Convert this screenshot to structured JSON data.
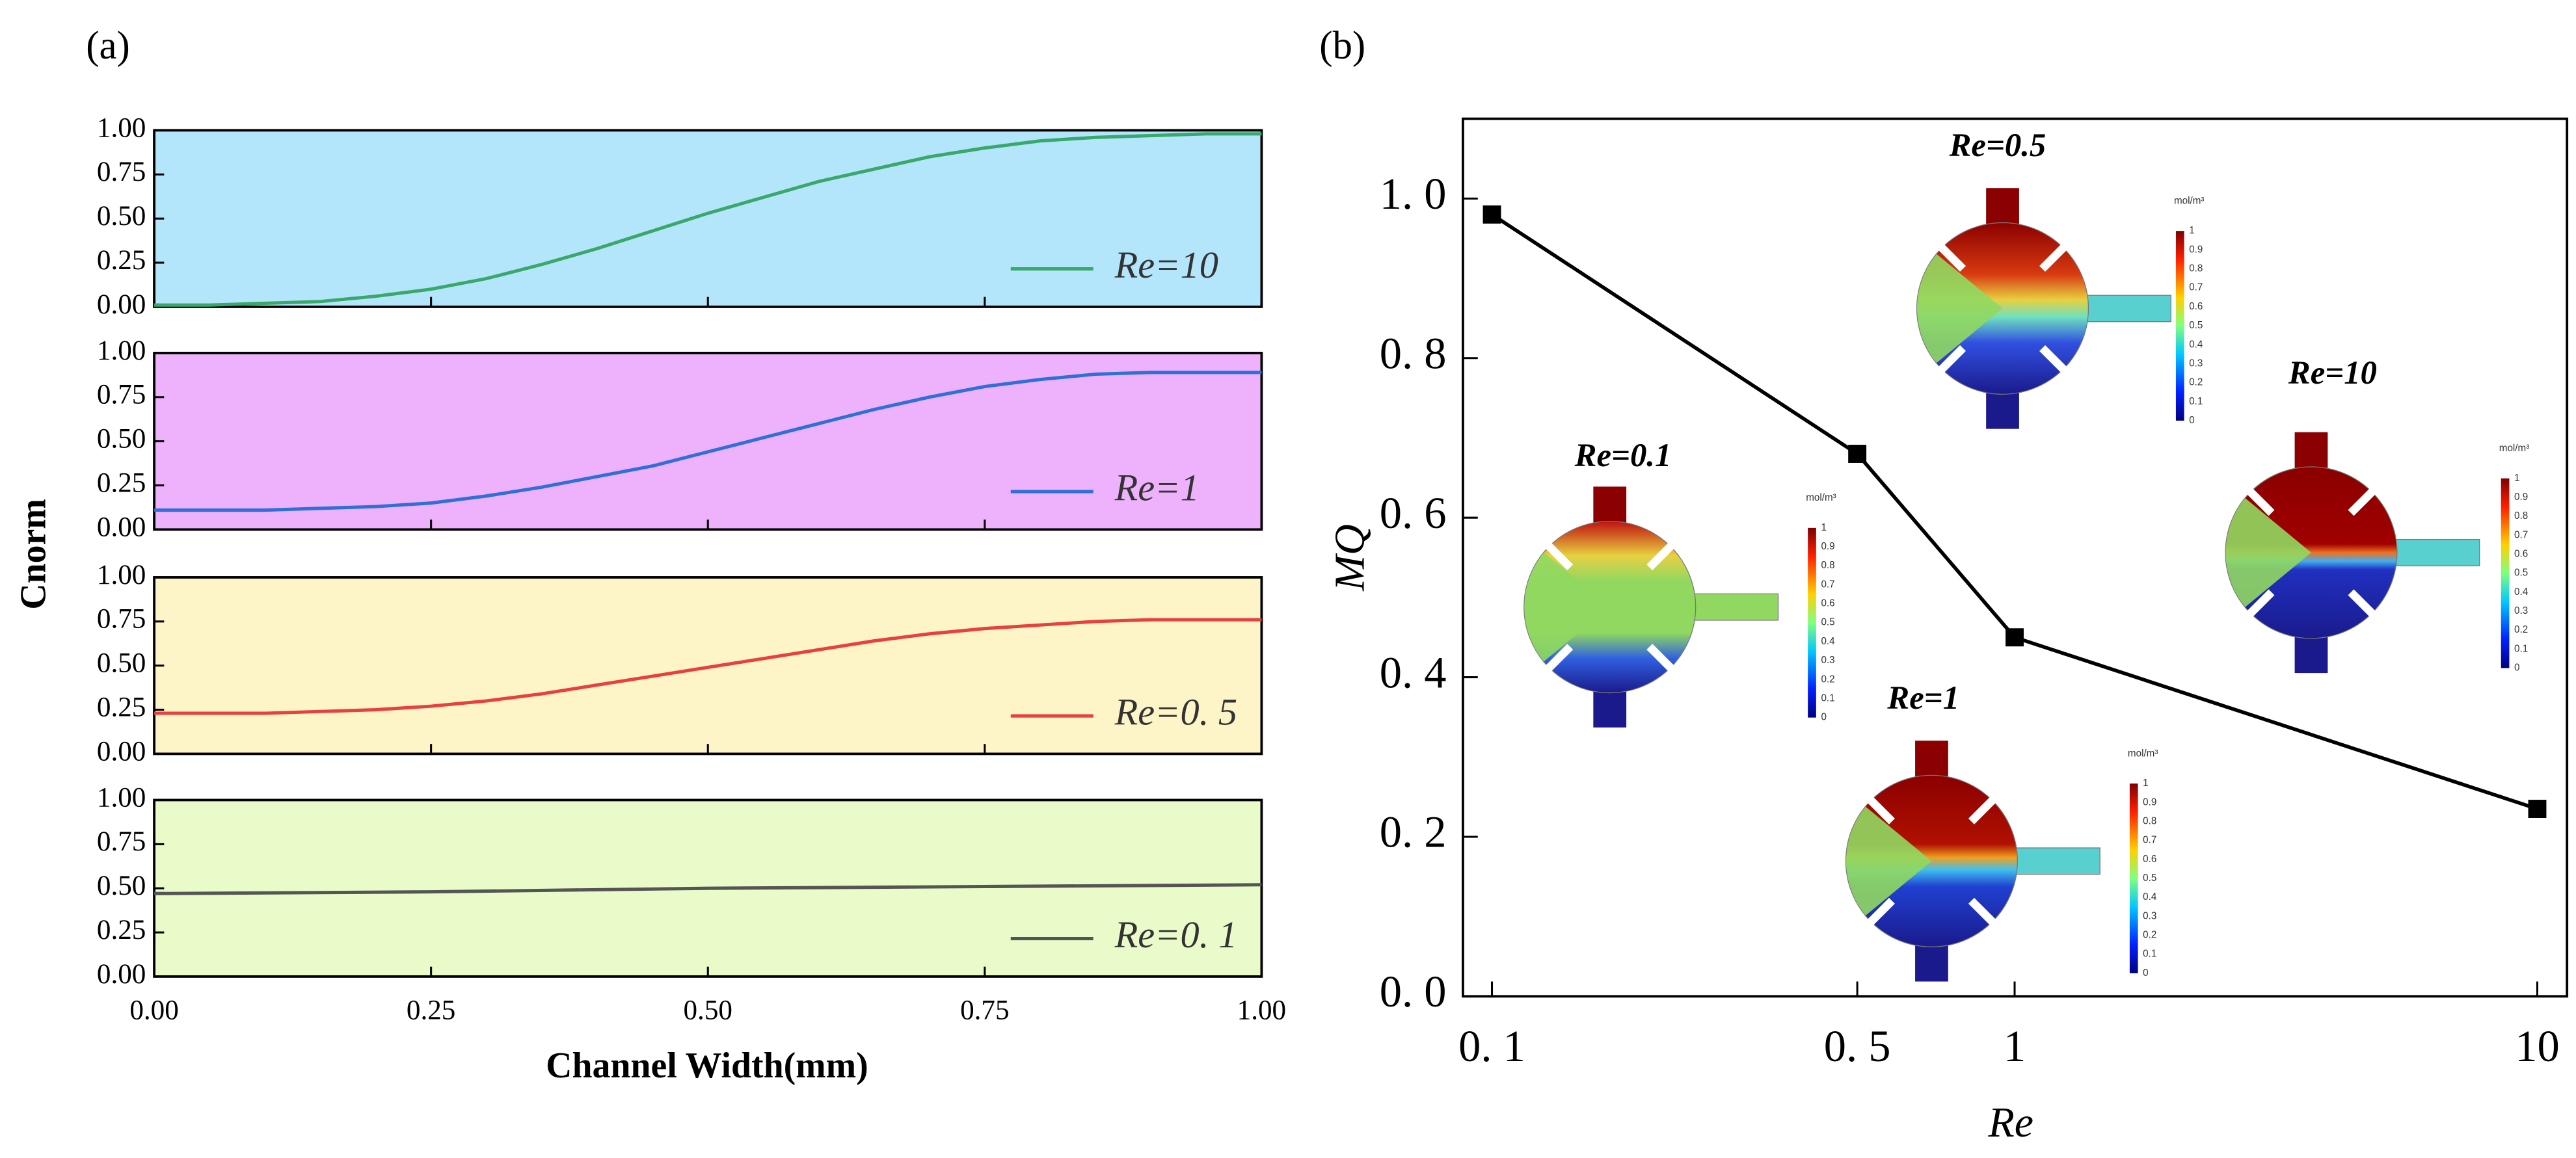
{
  "panels": [
    {
      "label": "(a)",
      "ylabel": "Cnorm",
      "xlabel": "Channel Width(mm)"
    },
    {
      "label": "(b)"
    }
  ],
  "chart_data": [
    {
      "type": "line",
      "background": "#b3e5fb",
      "legend": "lower right",
      "x": [
        0,
        0.05,
        0.1,
        0.15,
        0.2,
        0.25,
        0.3,
        0.35,
        0.4,
        0.45,
        0.5,
        0.55,
        0.6,
        0.65,
        0.7,
        0.75,
        0.8,
        0.85,
        0.9,
        0.95,
        1
      ],
      "series": [
        {
          "name": "Re=10",
          "color": "#3aa86a",
          "values": [
            0.01,
            0.01,
            0.02,
            0.03,
            0.06,
            0.1,
            0.16,
            0.24,
            0.33,
            0.43,
            0.53,
            0.62,
            0.71,
            0.78,
            0.85,
            0.9,
            0.94,
            0.96,
            0.97,
            0.98,
            0.98
          ]
        }
      ],
      "xlim": [
        0,
        1
      ],
      "ylim": [
        0,
        1
      ],
      "yticks": [
        {
          "value": 0,
          "label": "0.00"
        },
        {
          "value": 0.25,
          "label": "0.25"
        },
        {
          "value": 0.5,
          "label": "0.50"
        },
        {
          "value": 0.75,
          "label": "0.75"
        },
        {
          "value": 1,
          "label": "1.00"
        }
      ]
    },
    {
      "type": "line",
      "background": "#eeb1fb",
      "legend": "lower right",
      "x": [
        0,
        0.05,
        0.1,
        0.15,
        0.2,
        0.25,
        0.3,
        0.35,
        0.4,
        0.45,
        0.5,
        0.55,
        0.6,
        0.65,
        0.7,
        0.75,
        0.8,
        0.85,
        0.9,
        0.95,
        1
      ],
      "series": [
        {
          "name": "Re=1",
          "color": "#2f6fd8",
          "values": [
            0.11,
            0.11,
            0.11,
            0.12,
            0.13,
            0.15,
            0.19,
            0.24,
            0.3,
            0.36,
            0.44,
            0.52,
            0.6,
            0.68,
            0.75,
            0.81,
            0.85,
            0.88,
            0.89,
            0.89,
            0.89
          ]
        }
      ],
      "xlim": [
        0,
        1
      ],
      "ylim": [
        0,
        1
      ],
      "yticks": [
        {
          "value": 0,
          "label": "0.00"
        },
        {
          "value": 0.25,
          "label": "0.25"
        },
        {
          "value": 0.5,
          "label": "0.50"
        },
        {
          "value": 0.75,
          "label": "0.75"
        },
        {
          "value": 1,
          "label": "1.00"
        }
      ]
    },
    {
      "type": "line",
      "background": "#fdf4c8",
      "legend": "lower right",
      "x": [
        0,
        0.05,
        0.1,
        0.15,
        0.2,
        0.25,
        0.3,
        0.35,
        0.4,
        0.45,
        0.5,
        0.55,
        0.6,
        0.65,
        0.7,
        0.75,
        0.8,
        0.85,
        0.9,
        0.95,
        1
      ],
      "series": [
        {
          "name": "Re=0. 5",
          "color": "#e8403f",
          "values": [
            0.23,
            0.23,
            0.23,
            0.24,
            0.25,
            0.27,
            0.3,
            0.34,
            0.39,
            0.44,
            0.49,
            0.54,
            0.59,
            0.64,
            0.68,
            0.71,
            0.73,
            0.75,
            0.76,
            0.76,
            0.76
          ]
        }
      ],
      "xlim": [
        0,
        1
      ],
      "ylim": [
        0,
        1
      ],
      "yticks": [
        {
          "value": 0,
          "label": "0.00"
        },
        {
          "value": 0.25,
          "label": "0.25"
        },
        {
          "value": 0.5,
          "label": "0.50"
        },
        {
          "value": 0.75,
          "label": "0.75"
        },
        {
          "value": 1,
          "label": "1.00"
        }
      ]
    },
    {
      "type": "line",
      "background": "#e8fbc8",
      "legend": "lower right",
      "x": [
        0,
        0.25,
        0.5,
        0.75,
        1
      ],
      "series": [
        {
          "name": "Re=0. 1",
          "color": "#555555",
          "values": [
            0.47,
            0.48,
            0.5,
            0.51,
            0.52
          ]
        }
      ],
      "xlim": [
        0,
        1
      ],
      "ylim": [
        0,
        1
      ],
      "yticks": [
        {
          "value": 0,
          "label": "0.00"
        },
        {
          "value": 0.25,
          "label": "0.25"
        },
        {
          "value": 0.5,
          "label": "0.50"
        },
        {
          "value": 0.75,
          "label": "0.75"
        },
        {
          "value": 1,
          "label": "1.00"
        }
      ],
      "xticks": [
        {
          "value": 0,
          "label": "0.00"
        },
        {
          "value": 0.25,
          "label": "0.25"
        },
        {
          "value": 0.5,
          "label": "0.50"
        },
        {
          "value": 0.75,
          "label": "0.75"
        },
        {
          "value": 1,
          "label": "1.00"
        }
      ]
    },
    {
      "type": "line",
      "xlabel": "Re",
      "ylabel": "MQ",
      "xscale": "log",
      "marker": "square",
      "x": [
        0.1,
        0.5,
        1,
        10
      ],
      "series": [
        {
          "color": "#000000",
          "values": [
            0.98,
            0.68,
            0.45,
            0.235
          ]
        }
      ],
      "xlim": [
        0.088,
        11.4
      ],
      "ylim": [
        0,
        1.1
      ],
      "xticks": [
        {
          "value": 0.1,
          "label": "0. 1"
        },
        {
          "value": 0.5,
          "label": "0. 5"
        },
        1,
        10
      ],
      "yticks": [
        {
          "value": 0,
          "label": "0. 0"
        },
        {
          "value": 0.2,
          "label": "0. 2"
        },
        {
          "value": 0.4,
          "label": "0. 4"
        },
        {
          "value": 0.6,
          "label": "0. 6"
        },
        {
          "value": 0.8,
          "label": "0. 8"
        },
        {
          "value": 1,
          "label": "1. 0"
        }
      ],
      "insets": [
        {
          "label": "Re=0.5",
          "unit": "mol/m³",
          "ticks": [
            1,
            0.9,
            0.8,
            0.7,
            0.6,
            0.5,
            0.4,
            0.3,
            0.2,
            0.1,
            0
          ]
        },
        {
          "label": "Re=10",
          "unit": "mol/m³",
          "ticks": [
            1,
            0.9,
            0.8,
            0.7,
            0.6,
            0.5,
            0.4,
            0.3,
            0.2,
            0.1,
            0
          ]
        },
        {
          "label": "Re=0.1",
          "unit": "mol/m³",
          "ticks": [
            1,
            0.9,
            0.8,
            0.7,
            0.6,
            0.5,
            0.4,
            0.3,
            0.2,
            0.1,
            0
          ]
        },
        {
          "label": "Re=1",
          "unit": "mol/m³",
          "ticks": [
            1,
            0.9,
            0.8,
            0.7,
            0.6,
            0.5,
            0.4,
            0.3,
            0.2,
            0.1,
            0
          ]
        }
      ]
    }
  ]
}
